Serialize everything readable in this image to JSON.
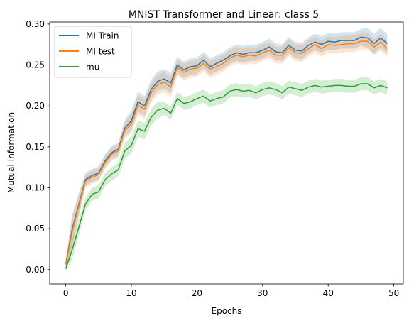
{
  "chart_data": {
    "type": "line",
    "title": "MNIST Transformer and Linear: class 5",
    "xlabel": "Epochs",
    "ylabel": "Mutual Information",
    "xlim": [
      -2.45,
      51.45
    ],
    "ylim": [
      -0.0175,
      0.3025
    ],
    "xticks": [
      0,
      10,
      20,
      30,
      40,
      50
    ],
    "xtick_labels": [
      "0",
      "10",
      "20",
      "30",
      "40",
      "50"
    ],
    "yticks": [
      0.0,
      0.05,
      0.1,
      0.15,
      0.2,
      0.25,
      0.3
    ],
    "ytick_labels": [
      "0.00",
      "0.05",
      "0.10",
      "0.15",
      "0.20",
      "0.25",
      "0.30"
    ],
    "grid": false,
    "legend_position": "upper-left",
    "x": [
      0,
      1,
      2,
      3,
      4,
      5,
      6,
      7,
      8,
      9,
      10,
      11,
      12,
      13,
      14,
      15,
      16,
      17,
      18,
      19,
      20,
      21,
      22,
      23,
      24,
      25,
      26,
      27,
      28,
      29,
      30,
      31,
      32,
      33,
      34,
      35,
      36,
      37,
      38,
      39,
      40,
      41,
      42,
      43,
      44,
      45,
      46,
      47,
      48,
      49
    ],
    "series": [
      {
        "name": "MI Train",
        "color": "#1f77b4",
        "values": [
          0.007,
          0.05,
          0.08,
          0.11,
          0.115,
          0.118,
          0.133,
          0.143,
          0.147,
          0.173,
          0.182,
          0.205,
          0.2,
          0.22,
          0.23,
          0.233,
          0.228,
          0.25,
          0.244,
          0.248,
          0.249,
          0.256,
          0.248,
          0.252,
          0.256,
          0.261,
          0.265,
          0.263,
          0.265,
          0.265,
          0.268,
          0.272,
          0.266,
          0.265,
          0.274,
          0.268,
          0.267,
          0.274,
          0.278,
          0.275,
          0.279,
          0.278,
          0.28,
          0.28,
          0.28,
          0.284,
          0.283,
          0.276,
          0.283,
          0.276
        ],
        "band": [
          0.006,
          0.018,
          0.014,
          0.008,
          0.008,
          0.008,
          0.008,
          0.008,
          0.008,
          0.01,
          0.012,
          0.012,
          0.012,
          0.012,
          0.012,
          0.012,
          0.012,
          0.01,
          0.01,
          0.01,
          0.01,
          0.01,
          0.01,
          0.01,
          0.01,
          0.01,
          0.01,
          0.01,
          0.01,
          0.01,
          0.01,
          0.01,
          0.01,
          0.01,
          0.01,
          0.01,
          0.01,
          0.01,
          0.01,
          0.01,
          0.01,
          0.01,
          0.01,
          0.01,
          0.01,
          0.01,
          0.012,
          0.012,
          0.012,
          0.012
        ]
      },
      {
        "name": "MI test",
        "color": "#ff7f0e",
        "values": [
          0.006,
          0.047,
          0.078,
          0.108,
          0.113,
          0.116,
          0.131,
          0.141,
          0.145,
          0.17,
          0.178,
          0.201,
          0.196,
          0.216,
          0.226,
          0.229,
          0.223,
          0.247,
          0.241,
          0.245,
          0.246,
          0.252,
          0.245,
          0.248,
          0.252,
          0.258,
          0.262,
          0.26,
          0.262,
          0.261,
          0.265,
          0.268,
          0.262,
          0.262,
          0.271,
          0.265,
          0.264,
          0.27,
          0.275,
          0.27,
          0.275,
          0.274,
          0.275,
          0.276,
          0.276,
          0.279,
          0.279,
          0.272,
          0.278,
          0.27
        ],
        "band": [
          0.006,
          0.018,
          0.014,
          0.008,
          0.008,
          0.008,
          0.008,
          0.008,
          0.008,
          0.01,
          0.012,
          0.012,
          0.012,
          0.012,
          0.012,
          0.012,
          0.012,
          0.01,
          0.01,
          0.01,
          0.01,
          0.01,
          0.01,
          0.01,
          0.01,
          0.01,
          0.01,
          0.01,
          0.01,
          0.01,
          0.01,
          0.01,
          0.01,
          0.01,
          0.01,
          0.01,
          0.01,
          0.01,
          0.01,
          0.01,
          0.01,
          0.01,
          0.01,
          0.01,
          0.01,
          0.01,
          0.01,
          0.01,
          0.01,
          0.01
        ]
      },
      {
        "name": "mu",
        "color": "#2ca02c",
        "values": [
          0.001,
          0.025,
          0.052,
          0.08,
          0.092,
          0.095,
          0.11,
          0.117,
          0.122,
          0.145,
          0.152,
          0.172,
          0.169,
          0.186,
          0.195,
          0.197,
          0.191,
          0.209,
          0.203,
          0.205,
          0.209,
          0.212,
          0.206,
          0.209,
          0.211,
          0.218,
          0.22,
          0.218,
          0.219,
          0.216,
          0.22,
          0.222,
          0.22,
          0.216,
          0.223,
          0.221,
          0.219,
          0.223,
          0.225,
          0.223,
          0.224,
          0.225,
          0.225,
          0.224,
          0.224,
          0.227,
          0.227,
          0.222,
          0.225,
          0.222
        ],
        "band": [
          0.003,
          0.012,
          0.01,
          0.008,
          0.008,
          0.008,
          0.008,
          0.008,
          0.008,
          0.01,
          0.01,
          0.01,
          0.01,
          0.01,
          0.01,
          0.008,
          0.008,
          0.008,
          0.008,
          0.008,
          0.008,
          0.008,
          0.008,
          0.008,
          0.008,
          0.008,
          0.008,
          0.008,
          0.008,
          0.008,
          0.008,
          0.008,
          0.008,
          0.008,
          0.008,
          0.008,
          0.008,
          0.008,
          0.008,
          0.008,
          0.008,
          0.008,
          0.008,
          0.008,
          0.008,
          0.008,
          0.008,
          0.008,
          0.008,
          0.008
        ]
      }
    ]
  }
}
